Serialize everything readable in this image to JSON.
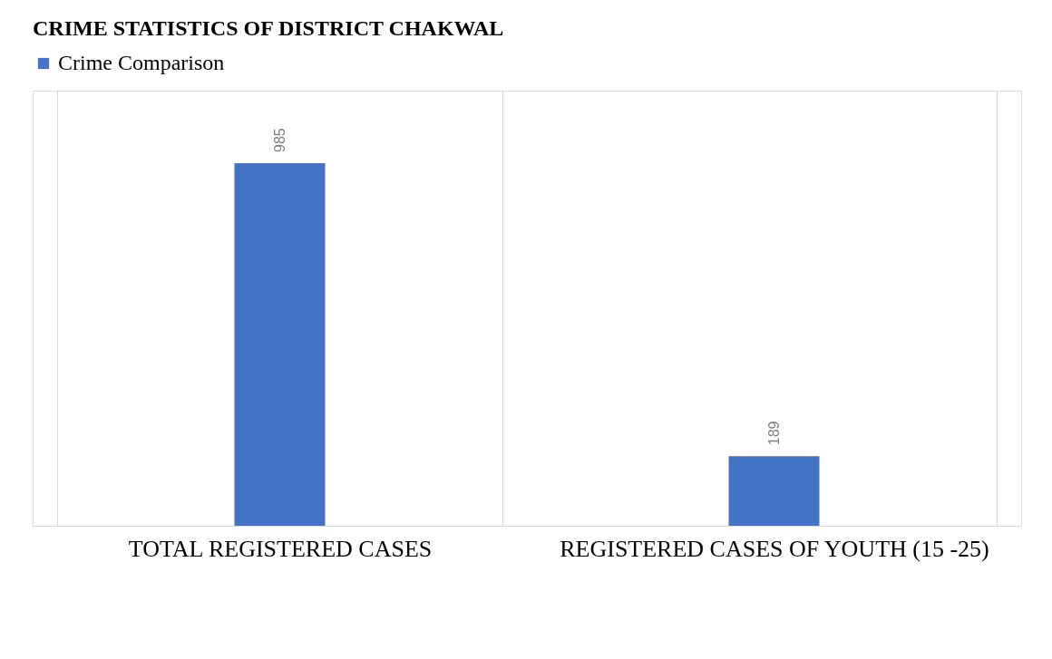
{
  "chart_data": {
    "type": "bar",
    "title": "CRIME STATISTICS OF DISTRICT CHAKWAL",
    "categories": [
      "TOTAL REGISTERED CASES",
      "REGISTERED CASES OF YOUTH (15 -25)"
    ],
    "series": [
      {
        "name": "Crime Comparison",
        "color": "#4472c4",
        "values": [
          985,
          189
        ]
      }
    ],
    "data_labels": true,
    "legend": "top",
    "grid": "x"
  }
}
